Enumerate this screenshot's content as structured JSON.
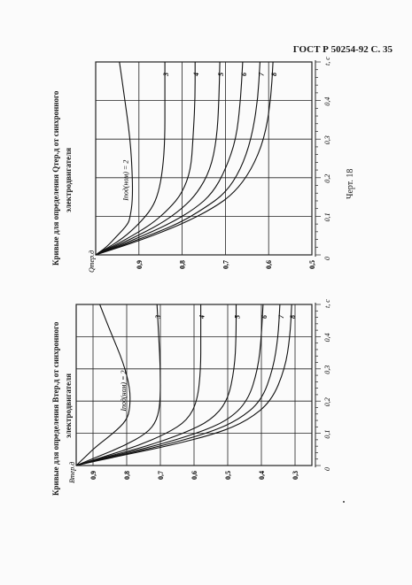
{
  "header": {
    "text": "ГОСТ Р 50254-92  С. 35"
  },
  "figure_label": "Черт. 18",
  "chart_data": [
    {
      "type": "line",
      "title_line1": "Кривые для определения Qтер.д от синхронного",
      "title_line2": "электродвигателя",
      "ylabel": "Qтер.д",
      "xlabel": "t, c",
      "curve_label": "Iпод(ном) = 2",
      "xlim": [
        0,
        0.5
      ],
      "ylim": [
        0.5,
        1.0
      ],
      "x_ticks": [
        "0",
        "0,1",
        "0,2",
        "0,3",
        "0,4",
        "t, c"
      ],
      "y_ticks": [
        "0,9",
        "0,8",
        "0,7",
        "0,6",
        "0,5"
      ],
      "series": [
        {
          "name": "2",
          "points": [
            [
              0,
              1.0
            ],
            [
              0.02,
              0.975
            ],
            [
              0.05,
              0.95
            ],
            [
              0.08,
              0.925
            ],
            [
              0.1,
              0.92
            ],
            [
              0.14,
              0.915
            ],
            [
              0.2,
              0.915
            ],
            [
              0.3,
              0.92
            ],
            [
              0.42,
              0.935
            ],
            [
              0.5,
              0.945
            ]
          ]
        },
        {
          "name": "3",
          "points": [
            [
              0,
              1.0
            ],
            [
              0.04,
              0.94
            ],
            [
              0.08,
              0.9
            ],
            [
              0.12,
              0.87
            ],
            [
              0.16,
              0.855
            ],
            [
              0.22,
              0.845
            ],
            [
              0.3,
              0.84
            ],
            [
              0.4,
              0.84
            ],
            [
              0.5,
              0.84
            ]
          ]
        },
        {
          "name": "4",
          "points": [
            [
              0,
              1.0
            ],
            [
              0.04,
              0.93
            ],
            [
              0.08,
              0.87
            ],
            [
              0.12,
              0.83
            ],
            [
              0.16,
              0.8
            ],
            [
              0.22,
              0.78
            ],
            [
              0.3,
              0.775
            ],
            [
              0.4,
              0.77
            ],
            [
              0.5,
              0.77
            ]
          ]
        },
        {
          "name": "5",
          "points": [
            [
              0,
              1.0
            ],
            [
              0.04,
              0.92
            ],
            [
              0.08,
              0.85
            ],
            [
              0.12,
              0.8
            ],
            [
              0.16,
              0.765
            ],
            [
              0.22,
              0.735
            ],
            [
              0.3,
              0.72
            ],
            [
              0.4,
              0.715
            ],
            [
              0.5,
              0.713
            ]
          ]
        },
        {
          "name": "6",
          "points": [
            [
              0,
              1.0
            ],
            [
              0.04,
              0.91
            ],
            [
              0.08,
              0.83
            ],
            [
              0.12,
              0.77
            ],
            [
              0.16,
              0.73
            ],
            [
              0.22,
              0.7
            ],
            [
              0.3,
              0.675
            ],
            [
              0.4,
              0.665
            ],
            [
              0.5,
              0.66
            ]
          ]
        },
        {
          "name": "7",
          "points": [
            [
              0,
              1.0
            ],
            [
              0.04,
              0.9
            ],
            [
              0.08,
              0.81
            ],
            [
              0.12,
              0.75
            ],
            [
              0.16,
              0.7
            ],
            [
              0.22,
              0.665
            ],
            [
              0.3,
              0.64
            ],
            [
              0.4,
              0.625
            ],
            [
              0.5,
              0.62
            ]
          ]
        },
        {
          "name": "8",
          "points": [
            [
              0,
              1.0
            ],
            [
              0.04,
              0.89
            ],
            [
              0.08,
              0.8
            ],
            [
              0.12,
              0.73
            ],
            [
              0.16,
              0.68
            ],
            [
              0.22,
              0.64
            ],
            [
              0.3,
              0.61
            ],
            [
              0.4,
              0.595
            ],
            [
              0.5,
              0.59
            ]
          ]
        }
      ]
    },
    {
      "type": "line",
      "title_line1": "Кривые для определения Bтер.д от синхронного",
      "title_line2": "электродвигателя",
      "ylabel": "Bтер.д",
      "xlabel": "t, c",
      "curve_label": "Iпод(ном) = 2",
      "xlim": [
        0,
        0.5
      ],
      "ylim": [
        0.25,
        0.95
      ],
      "x_ticks": [
        "0",
        "0,1",
        "0,2",
        "0,3",
        "0,4",
        "t, c"
      ],
      "y_ticks": [
        "0,9",
        "0,8",
        "0,7",
        "0,6",
        "0,5",
        "0,4",
        "0,3"
      ],
      "series": [
        {
          "name": "2",
          "points": [
            [
              0,
              0.95
            ],
            [
              0.03,
              0.92
            ],
            [
              0.06,
              0.89
            ],
            [
              0.1,
              0.84
            ],
            [
              0.14,
              0.8
            ],
            [
              0.18,
              0.79
            ],
            [
              0.24,
              0.79
            ],
            [
              0.32,
              0.81
            ],
            [
              0.42,
              0.85
            ],
            [
              0.5,
              0.88
            ]
          ]
        },
        {
          "name": "3",
          "points": [
            [
              0,
              0.95
            ],
            [
              0.03,
              0.88
            ],
            [
              0.06,
              0.81
            ],
            [
              0.1,
              0.74
            ],
            [
              0.14,
              0.71
            ],
            [
              0.2,
              0.7
            ],
            [
              0.3,
              0.7
            ],
            [
              0.4,
              0.705
            ],
            [
              0.5,
              0.71
            ]
          ]
        },
        {
          "name": "4",
          "points": [
            [
              0,
              0.95
            ],
            [
              0.03,
              0.86
            ],
            [
              0.06,
              0.77
            ],
            [
              0.1,
              0.68
            ],
            [
              0.14,
              0.62
            ],
            [
              0.2,
              0.59
            ],
            [
              0.3,
              0.58
            ],
            [
              0.4,
              0.58
            ],
            [
              0.5,
              0.58
            ]
          ]
        },
        {
          "name": "5",
          "points": [
            [
              0,
              0.95
            ],
            [
              0.03,
              0.85
            ],
            [
              0.06,
              0.74
            ],
            [
              0.1,
              0.63
            ],
            [
              0.14,
              0.55
            ],
            [
              0.2,
              0.5
            ],
            [
              0.3,
              0.48
            ],
            [
              0.4,
              0.475
            ],
            [
              0.5,
              0.475
            ]
          ]
        },
        {
          "name": "6",
          "points": [
            [
              0,
              0.95
            ],
            [
              0.03,
              0.84
            ],
            [
              0.06,
              0.72
            ],
            [
              0.1,
              0.59
            ],
            [
              0.14,
              0.5
            ],
            [
              0.2,
              0.44
            ],
            [
              0.3,
              0.41
            ],
            [
              0.4,
              0.4
            ],
            [
              0.5,
              0.395
            ]
          ]
        },
        {
          "name": "7",
          "points": [
            [
              0,
              0.95
            ],
            [
              0.03,
              0.83
            ],
            [
              0.06,
              0.7
            ],
            [
              0.1,
              0.56
            ],
            [
              0.14,
              0.47
            ],
            [
              0.2,
              0.4
            ],
            [
              0.3,
              0.365
            ],
            [
              0.4,
              0.35
            ],
            [
              0.5,
              0.345
            ]
          ]
        },
        {
          "name": "8",
          "points": [
            [
              0,
              0.95
            ],
            [
              0.03,
              0.82
            ],
            [
              0.06,
              0.68
            ],
            [
              0.1,
              0.53
            ],
            [
              0.14,
              0.44
            ],
            [
              0.2,
              0.37
            ],
            [
              0.3,
              0.33
            ],
            [
              0.4,
              0.315
            ],
            [
              0.5,
              0.31
            ]
          ]
        }
      ]
    }
  ]
}
